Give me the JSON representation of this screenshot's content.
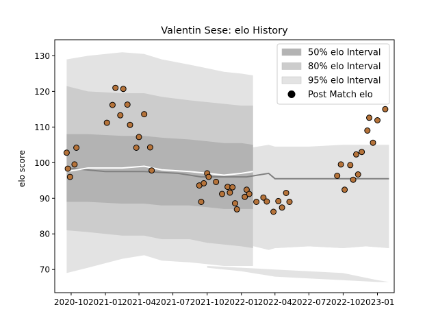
{
  "chart_data": {
    "type": "scatter",
    "title": "Valentin Sese: elo History",
    "xlabel": "",
    "ylabel": "elo score",
    "xlim": [
      "2020-08-18",
      "2023-02-15"
    ],
    "ylim": [
      63.5,
      134.5
    ],
    "x_ticks": [
      {
        "date": "2020-10-01",
        "label": "2020-10"
      },
      {
        "date": "2021-01-01",
        "label": "2021-01"
      },
      {
        "date": "2021-04-01",
        "label": "2021-04"
      },
      {
        "date": "2021-07-01",
        "label": "2021-07"
      },
      {
        "date": "2021-10-01",
        "label": "2021-10"
      },
      {
        "date": "2022-01-01",
        "label": "2022-01"
      },
      {
        "date": "2022-04-01",
        "label": "2022-04"
      },
      {
        "date": "2022-07-01",
        "label": "2022-07"
      },
      {
        "date": "2022-10-01",
        "label": "2022-10"
      },
      {
        "date": "2023-01-01",
        "label": "2023-01"
      }
    ],
    "y_ticks": [
      70,
      80,
      90,
      100,
      110,
      120,
      130
    ],
    "legend": {
      "position": "top-right",
      "entries": [
        {
          "label": "50% elo Interval",
          "color": "#b3b3b3"
        },
        {
          "label": "80% elo Interval",
          "color": "#cccccc"
        },
        {
          "label": "95% elo Interval",
          "color": "#e3e3e3"
        },
        {
          "label": "Post Match elo",
          "color": "#000000"
        }
      ]
    },
    "colors": {
      "band50": "#b3b3b3",
      "band80": "#cccccc",
      "band95": "#e3e3e3",
      "point_fill": "#b5733a",
      "point_edge": "#000000",
      "mean_line_a": "#ffffff",
      "mean_line_b": "#808080"
    },
    "series_a": {
      "x": [
        "2020-09-19",
        "2020-11-15",
        "2021-02-15",
        "2021-04-15",
        "2021-06-01",
        "2021-08-15",
        "2021-10-01",
        "2021-11-15",
        "2022-01-01",
        "2022-02-01"
      ],
      "mean": [
        97.5,
        98.5,
        98.5,
        99,
        98,
        97.5,
        97,
        96.5,
        97,
        97.5
      ],
      "band50": [
        [
          89,
          108
        ],
        [
          89,
          108
        ],
        [
          88.5,
          107.5
        ],
        [
          88.5,
          107.5
        ],
        [
          88,
          107
        ],
        [
          88,
          106.5
        ],
        [
          87.5,
          106
        ],
        [
          87,
          105.5
        ],
        [
          87,
          105.5
        ],
        [
          87,
          105
        ]
      ],
      "band80": [
        [
          81,
          121.5
        ],
        [
          80.5,
          120
        ],
        [
          79.5,
          119.5
        ],
        [
          79.5,
          119.5
        ],
        [
          78.5,
          118.5
        ],
        [
          78.5,
          117.5
        ],
        [
          77.5,
          117
        ],
        [
          77,
          116.5
        ],
        [
          76.5,
          116
        ],
        [
          76,
          116
        ]
      ],
      "band95": [
        [
          69,
          129
        ],
        [
          70.5,
          130
        ],
        [
          73,
          131
        ],
        [
          74,
          130.5
        ],
        [
          72.5,
          129
        ],
        [
          72,
          127.5
        ],
        [
          71.5,
          126.5
        ],
        [
          71,
          125.5
        ],
        [
          71,
          125
        ],
        [
          71,
          124.5
        ]
      ]
    },
    "series_b": {
      "x": [
        "2020-09-19",
        "2021-01-01",
        "2021-04-15",
        "2021-07-15",
        "2021-09-15",
        "2021-11-15",
        "2022-01-15",
        "2022-03-15",
        "2022-04-01",
        "2022-07-01",
        "2022-10-01",
        "2022-12-01",
        "2023-02-01"
      ],
      "mean": [
        98.5,
        97.5,
        97.5,
        97,
        96,
        96,
        96,
        97,
        95.5,
        95.5,
        95.5,
        95.5,
        95.5
      ],
      "band95_upper": [
        null,
        null,
        null,
        null,
        104,
        104,
        104,
        105,
        104.5,
        104.5,
        105,
        105.5,
        105.5
      ],
      "band95_lower": [
        null,
        null,
        null,
        null,
        76,
        76.5,
        77,
        75.5,
        76,
        76.5,
        76,
        76.5,
        76
      ]
    },
    "series_c_tail": {
      "x": [
        "2021-10-01",
        "2022-01-01",
        "2022-04-01",
        "2022-07-01",
        "2022-10-01",
        "2023-01-01",
        "2023-02-01"
      ],
      "upper": [
        71,
        70.5,
        70,
        69.5,
        69,
        67,
        66.5
      ],
      "lower": [
        70.5,
        69.5,
        68,
        67.5,
        67,
        66.5,
        66.5
      ]
    },
    "points": {
      "name": "Post Match elo",
      "data": [
        [
          "2020-09-19",
          102.8
        ],
        [
          "2020-09-22",
          98.3
        ],
        [
          "2020-09-28",
          96.0
        ],
        [
          "2020-10-10",
          99.5
        ],
        [
          "2020-10-15",
          104.2
        ],
        [
          "2021-01-05",
          111.2
        ],
        [
          "2021-01-20",
          116.2
        ],
        [
          "2021-01-28",
          121.0
        ],
        [
          "2021-02-10",
          113.3
        ],
        [
          "2021-02-18",
          120.7
        ],
        [
          "2021-03-01",
          116.3
        ],
        [
          "2021-03-08",
          110.6
        ],
        [
          "2021-03-25",
          104.2
        ],
        [
          "2021-04-01",
          107.2
        ],
        [
          "2021-04-15",
          113.6
        ],
        [
          "2021-05-01",
          104.3
        ],
        [
          "2021-05-05",
          97.8
        ],
        [
          "2021-09-10",
          93.6
        ],
        [
          "2021-09-15",
          89.0
        ],
        [
          "2021-09-22",
          94.2
        ],
        [
          "2021-10-01",
          97.0
        ],
        [
          "2021-10-05",
          96.0
        ],
        [
          "2021-10-25",
          94.6
        ],
        [
          "2021-11-10",
          91.2
        ],
        [
          "2021-11-25",
          93.2
        ],
        [
          "2021-12-01",
          91.6
        ],
        [
          "2021-12-08",
          93.1
        ],
        [
          "2021-12-15",
          88.6
        ],
        [
          "2021-12-20",
          86.9
        ],
        [
          "2022-01-10",
          90.4
        ],
        [
          "2022-01-15",
          92.4
        ],
        [
          "2022-01-22",
          91.2
        ],
        [
          "2022-02-10",
          89.0
        ],
        [
          "2022-03-01",
          90.2
        ],
        [
          "2022-03-10",
          89.1
        ],
        [
          "2022-03-28",
          86.2
        ],
        [
          "2022-04-10",
          89.2
        ],
        [
          "2022-04-20",
          87.4
        ],
        [
          "2022-05-01",
          91.5
        ],
        [
          "2022-05-10",
          89.0
        ],
        [
          "2022-09-15",
          96.3
        ],
        [
          "2022-09-25",
          99.5
        ],
        [
          "2022-10-05",
          92.4
        ],
        [
          "2022-10-20",
          99.3
        ],
        [
          "2022-10-28",
          95.2
        ],
        [
          "2022-11-05",
          102.3
        ],
        [
          "2022-11-10",
          96.7
        ],
        [
          "2022-11-20",
          103.0
        ],
        [
          "2022-12-05",
          109.0
        ],
        [
          "2022-12-10",
          112.6
        ],
        [
          "2022-12-20",
          105.6
        ],
        [
          "2023-01-01",
          111.9
        ],
        [
          "2023-01-22",
          115.0
        ]
      ]
    }
  }
}
